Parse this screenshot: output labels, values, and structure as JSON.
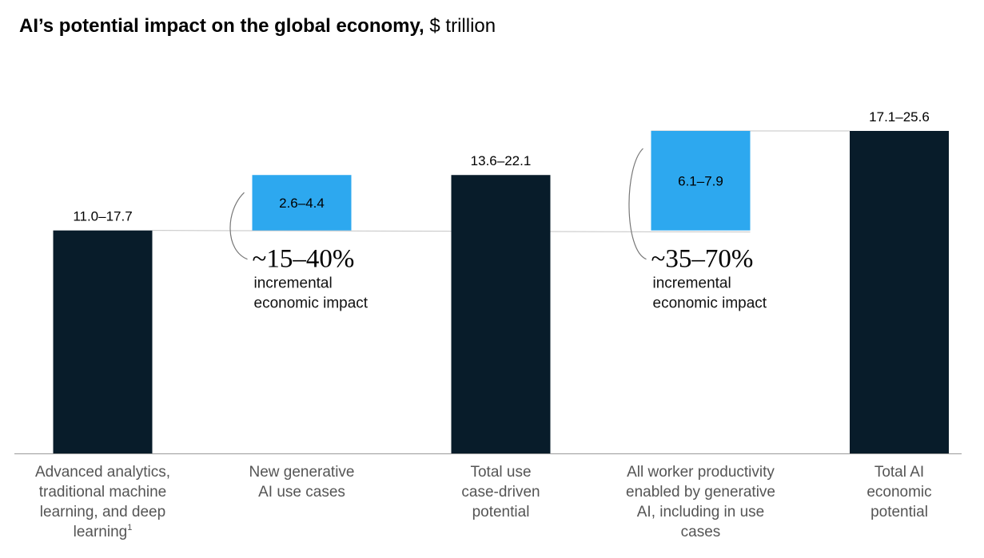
{
  "title": {
    "bold": "AI’s potential impact on the global economy,",
    "unit": "$ trillion"
  },
  "colors": {
    "total_bar": "#081c2a",
    "increment_bar": "#2da8ef",
    "axis": "#9a9a9a",
    "connector": "#c4c4c4",
    "bracket": "#777777"
  },
  "chart_data": {
    "type": "bar",
    "subtype": "waterfall",
    "title": "AI’s potential impact on the global economy, $ trillion",
    "unit": "$ trillion",
    "categories": [
      "Advanced analytics, traditional machine learning, and deep learning¹",
      "New generative AI use cases",
      "Total use case-driven potential",
      "All worker productivity enabled by generative AI, including in use cases",
      "Total AI economic potential"
    ],
    "category_lines": [
      [
        "Advanced analytics,",
        "traditional machine",
        "learning, and deep",
        "learning"
      ],
      [
        "New generative",
        "AI use cases"
      ],
      [
        "Total use",
        "case-driven",
        "potential"
      ],
      [
        "All worker productivity",
        "enabled by generative",
        "AI, including in use",
        "cases"
      ],
      [
        "Total AI",
        "economic",
        "potential"
      ]
    ],
    "footnote_marker": "1",
    "bars": [
      {
        "kind": "total",
        "label": "11.0–17.7",
        "low": 11.0,
        "high": 17.7,
        "base": 0,
        "top": 17.7
      },
      {
        "kind": "increment",
        "label": "2.6–4.4",
        "low": 2.6,
        "high": 4.4,
        "base": 17.7,
        "top": 22.1
      },
      {
        "kind": "total",
        "label": "13.6–22.1",
        "low": 13.6,
        "high": 22.1,
        "base": 0,
        "top": 22.1
      },
      {
        "kind": "increment",
        "label": "6.1–7.9",
        "low": 6.1,
        "high": 7.9,
        "base": 17.7,
        "top": 25.6
      },
      {
        "kind": "total",
        "label": "17.1–25.6",
        "low": 17.1,
        "high": 25.6,
        "base": 0,
        "top": 25.6
      }
    ],
    "annotations": [
      {
        "bar_index": 1,
        "percent": "~15–40%",
        "lines": [
          "incremental",
          "economic impact"
        ]
      },
      {
        "bar_index": 3,
        "percent": "~35–70%",
        "lines": [
          "incremental",
          "economic impact"
        ]
      }
    ],
    "ylim": [
      0,
      25.6
    ],
    "grid": false,
    "legend": "none"
  }
}
